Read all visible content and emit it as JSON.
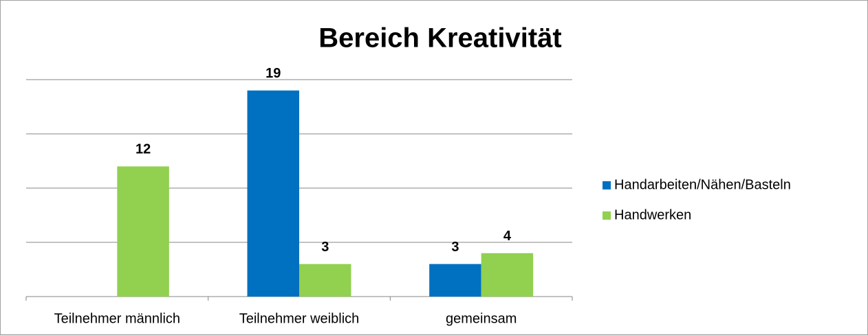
{
  "chart_data": {
    "type": "bar",
    "title": "Bereich Kreativität",
    "categories": [
      "Teilnehmer männlich",
      "Teilnehmer weiblich",
      "gemeinsam"
    ],
    "series": [
      {
        "name": "Handarbeiten/Nähen/Basteln",
        "color": "#0070c0",
        "values": [
          null,
          19,
          3
        ]
      },
      {
        "name": "Handwerken",
        "color": "#92d050",
        "values": [
          12,
          3,
          4
        ]
      }
    ],
    "ylim": [
      0,
      20
    ],
    "yticks": [
      0,
      5,
      10,
      15,
      20
    ],
    "grid": true,
    "legend": "right"
  }
}
